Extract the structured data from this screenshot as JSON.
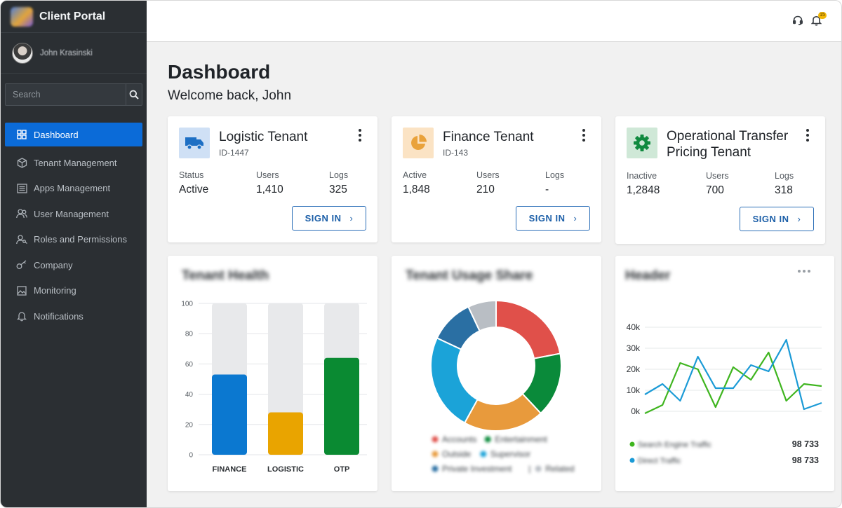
{
  "app": {
    "title": "Client Portal"
  },
  "user": {
    "name": "John Krasinski"
  },
  "search": {
    "placeholder": "Search"
  },
  "nav": [
    {
      "label": "Dashboard",
      "icon": "grid-icon",
      "active": true
    },
    {
      "label": "Tenant Management",
      "icon": "cube-icon"
    },
    {
      "label": "Apps Management",
      "icon": "list-icon"
    },
    {
      "label": "User Management",
      "icon": "users-icon"
    },
    {
      "label": "Roles and Permissions",
      "icon": "user-key-icon"
    },
    {
      "label": "Company",
      "icon": "key-icon"
    },
    {
      "label": "Monitoring",
      "icon": "image-icon"
    },
    {
      "label": "Notifications",
      "icon": "bell-icon"
    }
  ],
  "topbar": {
    "notification_count": "15"
  },
  "page": {
    "title": "Dashboard",
    "subtitle": "Welcome back, John"
  },
  "tenants": [
    {
      "name": "Logistic Tenant",
      "id": "ID-1447",
      "icon": "truck-icon",
      "accent": "#1d6fc4",
      "icon_bg": "#cfe0f5",
      "stats": [
        {
          "label": "Status",
          "value": "Active"
        },
        {
          "label": "Users",
          "value": "1,410"
        },
        {
          "label": "Logs",
          "value": "325"
        }
      ],
      "button": "SIGN IN"
    },
    {
      "name": "Finance Tenant",
      "id": "ID-143",
      "icon": "pie-icon",
      "accent": "#e9a23b",
      "icon_bg": "#fbe3c4",
      "stats": [
        {
          "label": "Active",
          "value": "1,848"
        },
        {
          "label": "Users",
          "value": "210"
        },
        {
          "label": "Logs",
          "value": "-"
        }
      ],
      "button": "SIGN IN"
    },
    {
      "name_lines": [
        "Operational Transfer",
        "Pricing Tenant"
      ],
      "icon": "gear-icon",
      "accent": "#108a3f",
      "icon_bg": "#cfe8d7",
      "stats": [
        {
          "label": "Inactive",
          "value": "1,2848"
        },
        {
          "label": "Users",
          "value": "700"
        },
        {
          "label": "Logs",
          "value": "318"
        }
      ],
      "button": "SIGN IN"
    }
  ],
  "chart_data": [
    {
      "type": "bar",
      "title": "Tenant Health",
      "categories": [
        "FINANCE",
        "LOGISTIC",
        "OTP"
      ],
      "values": [
        53,
        28,
        64
      ],
      "max_values": [
        100,
        100,
        100
      ],
      "colors": [
        "#0b78d0",
        "#e9a400",
        "#0a8a32"
      ],
      "ylim": [
        0,
        100
      ],
      "yticks": [
        0,
        20,
        40,
        60,
        80,
        100
      ],
      "grid": true
    },
    {
      "type": "pie",
      "title": "Tenant Usage Share",
      "labels": [
        "Accounts",
        "Entertainment",
        "Outside",
        "Supervisor",
        "Private Investment",
        "Related"
      ],
      "values": [
        22,
        16,
        20,
        24,
        11,
        7
      ],
      "colors": [
        "#e0504a",
        "#0a8a3a",
        "#e89a3c",
        "#1ba3d8",
        "#2a6fa3",
        "#b9bec4"
      ],
      "legend": [
        "Accounts",
        "Entertainment",
        "Outside",
        "Supervisor",
        "Private Investment",
        "|",
        "Related"
      ],
      "legend_position": "bottom"
    },
    {
      "type": "line",
      "title": "Header",
      "ylim": [
        0,
        40000
      ],
      "yticks": [
        "0k",
        "10k",
        "20k",
        "30k",
        "40k"
      ],
      "grid": true,
      "series": [
        {
          "name": "Search Engine Traffic",
          "total": "98 733",
          "color": "#3fb51f",
          "values": [
            -1000,
            3000,
            23000,
            20000,
            2000,
            21000,
            15000,
            28000,
            5000,
            13000,
            12000
          ]
        },
        {
          "name": "Direct Traffic",
          "total": "98 733",
          "color": "#1a9ad6",
          "values": [
            8000,
            13000,
            5000,
            26000,
            11000,
            11000,
            22000,
            19000,
            34000,
            1000,
            4000
          ]
        }
      ],
      "legend_position": "bottom"
    }
  ]
}
